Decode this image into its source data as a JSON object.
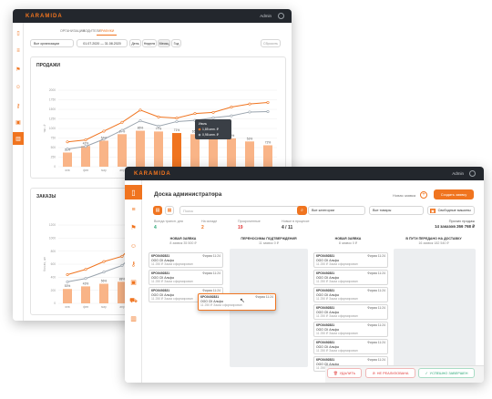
{
  "brand": "KARAMIDA",
  "user": "Admin",
  "back": {
    "tabs": [
      "ОРГАНИЗАЦИИ",
      "ВОДИТЕЛИ",
      "ГРАФИКИ"
    ],
    "filter": "Все организации",
    "date_range": "01.07.2020 — 31.08.2020",
    "periods": [
      "День",
      "Неделя",
      "Месяц",
      "Год"
    ],
    "active_period": "Месяц",
    "reset": "Сбросить",
    "sales_title": "ПРОДАЖИ",
    "orders_title": "ЗАКАЗЫ",
    "y_ticks": [
      "2000",
      "1750",
      "1500",
      "1250",
      "1000",
      "750",
      "500",
      "250",
      "0"
    ],
    "months": [
      "янв",
      "фев",
      "мар",
      "апр",
      "май",
      "июн",
      "июл",
      "авг",
      "сен",
      "окт",
      "ноя",
      "дек"
    ],
    "y_axis_label": "тыс. ₽",
    "orders_axis_label": "Кол-во, шт",
    "orders_y_ticks": [
      "1200",
      "1000",
      "800",
      "600",
      "400",
      "200",
      "0"
    ],
    "tooltip": {
      "title": "Июль",
      "line1": "1,85 млн. ₽",
      "line2": "0,98 млн. ₽"
    }
  },
  "front": {
    "board_title": "Доска администратора",
    "search_placeholder": "Поиск",
    "new_order": "Новая заявка",
    "create_order": "Создать заявку",
    "filters": [
      "Все категории",
      "Все товары",
      "Свободные машины"
    ],
    "stats": [
      {
        "label": "Всегда трансп. дня",
        "value": "4"
      },
      {
        "label": "На складе",
        "value": "2"
      },
      {
        "label": "Просроченные",
        "value": "19"
      },
      {
        "label": "Новые в процессе",
        "value": "4 / 11"
      }
    ],
    "summary_label": "Прочих продаж",
    "summary_value": "14 заказов  266 768 ₽",
    "columns": [
      {
        "title": "НОВАЯ ЗАЯВКА",
        "sub": "8 заявок 35 500 ₽"
      },
      {
        "title": "ПЕРЕНОСИМЫ ПОДТВЕРЖДЕНИЯ",
        "sub": "11 заявок 0 ₽"
      },
      {
        "title": "НОВАЯ ЗАЯВКА",
        "sub": "8 заявок 0 ₽"
      },
      {
        "title": "В ПУТИ ПЕРЕДАНО НА ДОСТАВКУ",
        "sub": "16 заявок 182 540 ₽"
      }
    ],
    "order": {
      "id": "КРО0492831",
      "right": "Фирма 11:24",
      "company": "ООО СК Альфа",
      "price": "11 250 ₽",
      "status": "Заказ сформирован"
    },
    "actions": [
      "УДАЛИТЬ",
      "НЕ РЕАЛИЗОВАНА",
      "УСПЕШНО ЗАВЕРШЕН"
    ]
  },
  "chart_data": [
    {
      "type": "bar",
      "title": "ПРОДАЖИ",
      "categories": [
        "янв",
        "фев",
        "мар",
        "апр",
        "май",
        "июн",
        "июл",
        "авг",
        "сен",
        "окт",
        "ноя",
        "дек"
      ],
      "series": [
        {
          "type": "bar",
          "values": [
            370,
            540,
            680,
            850,
            940,
            920,
            880,
            850,
            810,
            740,
            660,
            560
          ],
          "labels": [
            "33%",
            "42%",
            "51%",
            "67%",
            "86%",
            "77%",
            "71%",
            "65%",
            "58%",
            "56%",
            "53%",
            "72%"
          ]
        },
        {
          "type": "line",
          "values": [
            650,
            700,
            930,
            1160,
            1480,
            1300,
            1270,
            1390,
            1420,
            1560,
            1640,
            1680
          ]
        },
        {
          "type": "line",
          "values": [
            460,
            530,
            720,
            950,
            1200,
            1060,
            1180,
            1210,
            1280,
            1330,
            1430,
            1440
          ]
        }
      ],
      "ylim": [
        0,
        2000
      ]
    },
    {
      "type": "bar",
      "title": "ЗАКАЗЫ",
      "categories": [
        "янв",
        "фев",
        "мар",
        "апр",
        "май"
      ],
      "series": [
        {
          "type": "bar",
          "values": [
            220,
            260,
            300,
            330,
            630
          ],
          "labels": [
            "53%",
            "43%",
            "56%",
            "88%",
            "98%"
          ]
        },
        {
          "type": "line",
          "values": [
            440,
            520,
            640,
            720,
            1000
          ]
        },
        {
          "type": "line",
          "values": [
            330,
            380,
            480,
            580,
            850
          ]
        }
      ],
      "ylim": [
        0,
        1200
      ]
    }
  ]
}
